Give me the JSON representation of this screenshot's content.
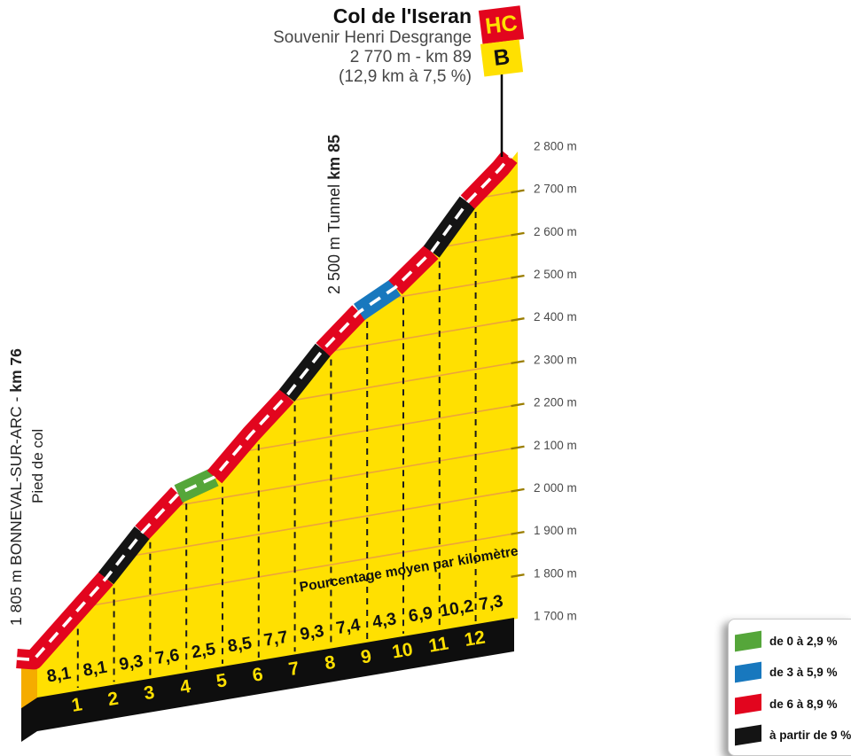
{
  "title": {
    "name": "Col de l'Iseran",
    "subtitle": "Souvenir Henri Desgrange",
    "summit_line": "2 770 m - km 89",
    "stats_line": "(12,9 km à 7,5 %)"
  },
  "badges": {
    "hc": "HC",
    "b": "B"
  },
  "start_label": {
    "text": "1 805 m BONNEVAL-SUR-ARC - ",
    "bold": "km 76",
    "sub": "Pied de col"
  },
  "tunnel_label": {
    "text": "2 500 m Tunnel ",
    "bold": "km 85"
  },
  "pourcentage_label": "Pourcentage moyen par kilomètre",
  "legend": [
    {
      "label": "de 0 à 2,9 %",
      "color": "#55A63A"
    },
    {
      "label": "de 3 à 5,9 %",
      "color": "#1878BE"
    },
    {
      "label": "de 6 à 8,9 %",
      "color": "#E2051E"
    },
    {
      "label": "à partir de 9 %",
      "color": "#141414"
    }
  ],
  "colors": {
    "yellow": "#FFE001",
    "side_face": "#F5AC00",
    "base_black": "#0E0E0E",
    "gridline": "#ECA43C",
    "tick": "#9A7D00",
    "km_dash": "#1A1A1A",
    "center_dash": "#FFFFFF",
    "elevation_text": "#4A4A4A",
    "dark_text": "#222222"
  },
  "chart_data": {
    "type": "area",
    "title": "Col de l'Iseran",
    "start": {
      "km": 76,
      "elevation_m": 1805,
      "place": "BONNEVAL-SUR-ARC",
      "note": "Pied de col"
    },
    "summit": {
      "km": 89,
      "elevation_m": 2770
    },
    "length_km": 12.9,
    "avg_gradient_pct": 7.5,
    "tunnel": {
      "label": "2 500 m Tunnel",
      "at": "km 85",
      "between_km_marks": [
        9,
        10
      ]
    },
    "y_axis": {
      "min_m": 1700,
      "max_m": 2800,
      "step_m": 100,
      "labels": [
        "1 700 m",
        "1 800 m",
        "1 900 m",
        "2 000 m",
        "2 100 m",
        "2 200 m",
        "2 300 m",
        "2 400 m",
        "2 500 m",
        "2 600 m",
        "2 700 m",
        "2 800 m"
      ]
    },
    "km_ticks": [
      "1",
      "2",
      "3",
      "4",
      "5",
      "6",
      "7",
      "8",
      "9",
      "10",
      "11",
      "12"
    ],
    "segments": [
      {
        "length_km": 1.0,
        "gradient_pct": 8.1,
        "gradient_label": "8,1"
      },
      {
        "length_km": 1.0,
        "gradient_pct": 8.1,
        "gradient_label": "8,1"
      },
      {
        "length_km": 1.0,
        "gradient_pct": 9.3,
        "gradient_label": "9,3"
      },
      {
        "length_km": 1.0,
        "gradient_pct": 7.6,
        "gradient_label": "7,6"
      },
      {
        "length_km": 1.0,
        "gradient_pct": 2.5,
        "gradient_label": "2,5"
      },
      {
        "length_km": 1.0,
        "gradient_pct": 8.5,
        "gradient_label": "8,5"
      },
      {
        "length_km": 1.0,
        "gradient_pct": 7.7,
        "gradient_label": "7,7"
      },
      {
        "length_km": 1.0,
        "gradient_pct": 9.3,
        "gradient_label": "9,3"
      },
      {
        "length_km": 1.0,
        "gradient_pct": 7.4,
        "gradient_label": "7,4"
      },
      {
        "length_km": 1.0,
        "gradient_pct": 4.3,
        "gradient_label": "4,3"
      },
      {
        "length_km": 1.0,
        "gradient_pct": 6.9,
        "gradient_label": "6,9"
      },
      {
        "length_km": 1.0,
        "gradient_pct": 10.2,
        "gradient_label": "10,2"
      },
      {
        "length_km": 0.9,
        "gradient_pct": 7.3,
        "gradient_label": "7,3"
      }
    ],
    "gradient_classes": [
      {
        "max_pct": 2.9,
        "color": "#55A63A"
      },
      {
        "max_pct": 5.9,
        "color": "#1878BE"
      },
      {
        "max_pct": 8.9,
        "color": "#E2051E"
      },
      {
        "max_pct": 100,
        "color": "#141414"
      }
    ]
  }
}
